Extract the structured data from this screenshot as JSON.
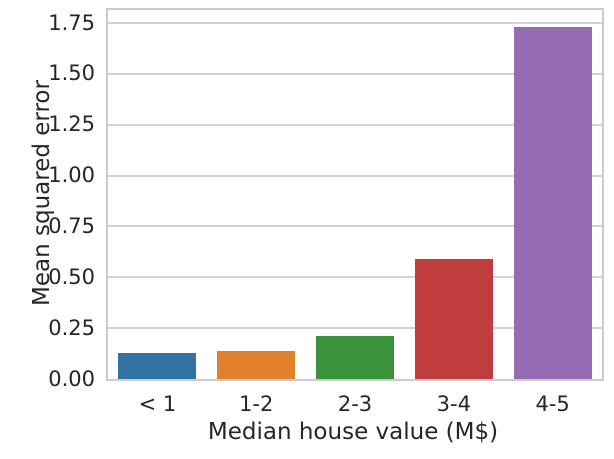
{
  "chart_data": {
    "type": "bar",
    "title": "",
    "xlabel": "Median house value (M$)",
    "ylabel": "Mean squared error",
    "categories": [
      "< 1",
      "1-2",
      "2-3",
      "3-4",
      "4-5"
    ],
    "values": [
      0.13,
      0.14,
      0.21,
      0.59,
      1.73
    ],
    "bar_colors": [
      "#3274a1",
      "#e1812c",
      "#3a923a",
      "#c03d3e",
      "#956cb4"
    ],
    "yticks": [
      0.0,
      0.25,
      0.5,
      0.75,
      1.0,
      1.25,
      1.5,
      1.75
    ],
    "ytick_labels": [
      "0.00",
      "0.25",
      "0.50",
      "0.75",
      "1.00",
      "1.25",
      "1.50",
      "1.75"
    ],
    "ylim": [
      0,
      1.8145
    ],
    "grid": true,
    "grid_axis": "y",
    "legend": null,
    "style": {
      "background": "#ffffff",
      "grid_color": "#d2d2d2",
      "spine_color": "#cccccc",
      "text_color": "#262626"
    }
  }
}
